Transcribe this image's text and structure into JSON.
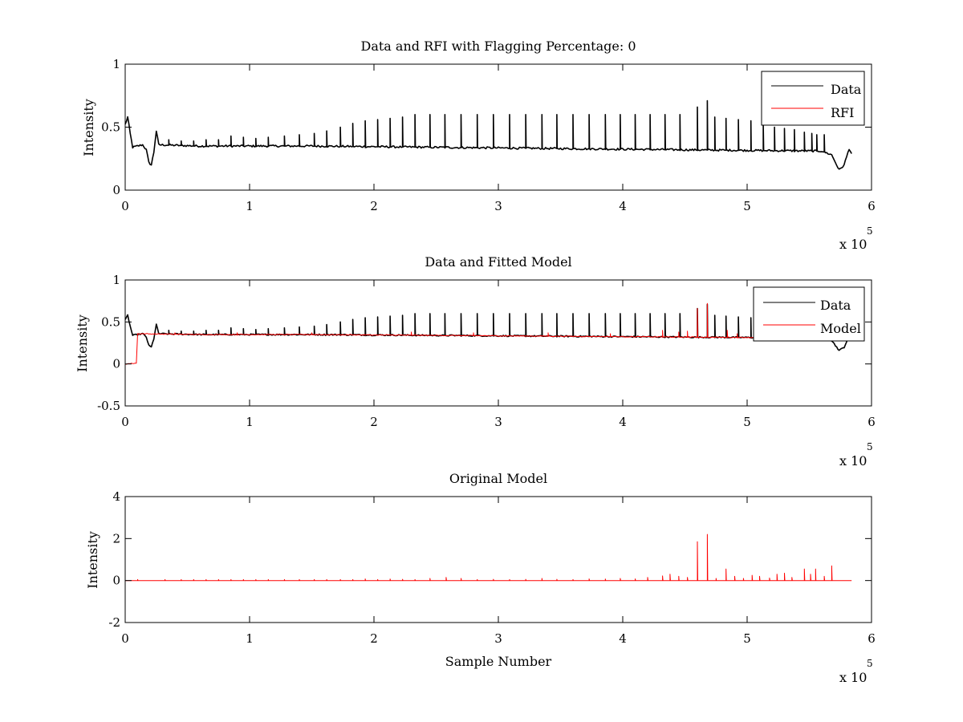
{
  "chart_data": [
    {
      "type": "line",
      "title": "Data and RFI with Flagging Percentage: 0",
      "xlabel": "",
      "ylabel": "Intensity",
      "xlim": [
        0,
        600000
      ],
      "ylim": [
        0,
        1
      ],
      "xticks": [
        "0",
        "1",
        "2",
        "3",
        "4",
        "5",
        "6"
      ],
      "yticks": [
        "0",
        "0.5",
        "1"
      ],
      "ytick_values": [
        0,
        0.5,
        1
      ],
      "x_exponent_label": "x 10",
      "x_exponent": "5",
      "grid": false,
      "legend": "top-right",
      "series": [
        {
          "name": "Data",
          "color": "#000000",
          "baseline": [
            [
              0,
              0.52
            ],
            [
              2000,
              0.58
            ],
            [
              4000,
              0.45
            ],
            [
              6000,
              0.34
            ],
            [
              10000,
              0.35
            ],
            [
              14000,
              0.36
            ],
            [
              17000,
              0.32
            ],
            [
              19000,
              0.22
            ],
            [
              21000,
              0.2
            ],
            [
              23000,
              0.3
            ],
            [
              25000,
              0.47
            ],
            [
              27000,
              0.36
            ],
            [
              60000,
              0.35
            ],
            [
              150000,
              0.35
            ],
            [
              250000,
              0.34
            ],
            [
              350000,
              0.33
            ],
            [
              450000,
              0.32
            ],
            [
              560000,
              0.31
            ],
            [
              568000,
              0.28
            ],
            [
              574000,
              0.16
            ],
            [
              578000,
              0.2
            ],
            [
              582000,
              0.33
            ],
            [
              584000,
              0.29
            ]
          ],
          "spikes": [
            [
              35000,
              0.4
            ],
            [
              45000,
              0.39
            ],
            [
              55000,
              0.39
            ],
            [
              65000,
              0.4
            ],
            [
              75000,
              0.4
            ],
            [
              85000,
              0.43
            ],
            [
              95000,
              0.42
            ],
            [
              105000,
              0.41
            ],
            [
              115000,
              0.42
            ],
            [
              128000,
              0.43
            ],
            [
              140000,
              0.44
            ],
            [
              152000,
              0.45
            ],
            [
              162000,
              0.47
            ],
            [
              173000,
              0.5
            ],
            [
              183000,
              0.53
            ],
            [
              193000,
              0.55
            ],
            [
              203000,
              0.56
            ],
            [
              213000,
              0.57
            ],
            [
              223000,
              0.58
            ],
            [
              233000,
              0.6
            ],
            [
              245000,
              0.6
            ],
            [
              257000,
              0.6
            ],
            [
              270000,
              0.6
            ],
            [
              283000,
              0.6
            ],
            [
              296000,
              0.6
            ],
            [
              309000,
              0.6
            ],
            [
              322000,
              0.6
            ],
            [
              335000,
              0.6
            ],
            [
              347000,
              0.6
            ],
            [
              360000,
              0.6
            ],
            [
              373000,
              0.6
            ],
            [
              386000,
              0.6
            ],
            [
              398000,
              0.6
            ],
            [
              410000,
              0.6
            ],
            [
              422000,
              0.6
            ],
            [
              434000,
              0.6
            ],
            [
              446000,
              0.6
            ],
            [
              460000,
              0.66
            ],
            [
              468000,
              0.71
            ],
            [
              474000,
              0.58
            ],
            [
              483000,
              0.57
            ],
            [
              493000,
              0.56
            ],
            [
              503000,
              0.55
            ],
            [
              513000,
              0.52
            ],
            [
              522000,
              0.5
            ],
            [
              530000,
              0.49
            ],
            [
              538000,
              0.48
            ],
            [
              546000,
              0.46
            ],
            [
              552000,
              0.45
            ],
            [
              556000,
              0.44
            ],
            [
              562000,
              0.44
            ]
          ]
        },
        {
          "name": "RFI",
          "color": "#ff0000",
          "values": []
        }
      ]
    },
    {
      "type": "line",
      "title": "Data and Fitted Model",
      "xlabel": "",
      "ylabel": "Intensity",
      "xlim": [
        0,
        600000
      ],
      "ylim": [
        -0.5,
        1
      ],
      "xticks": [
        "0",
        "1",
        "2",
        "3",
        "4",
        "5",
        "6"
      ],
      "yticks": [
        "-0.5",
        "0",
        "0.5",
        "1"
      ],
      "ytick_values": [
        -0.5,
        0,
        0.5,
        1
      ],
      "x_exponent_label": "x 10",
      "x_exponent": "5",
      "grid": false,
      "legend": "top-right",
      "series": [
        {
          "name": "Data",
          "color": "#000000",
          "baseline": [
            [
              0,
              0.52
            ],
            [
              2000,
              0.58
            ],
            [
              4000,
              0.45
            ],
            [
              6000,
              0.34
            ],
            [
              10000,
              0.35
            ],
            [
              14000,
              0.36
            ],
            [
              17000,
              0.32
            ],
            [
              19000,
              0.22
            ],
            [
              21000,
              0.2
            ],
            [
              23000,
              0.3
            ],
            [
              25000,
              0.47
            ],
            [
              27000,
              0.36
            ],
            [
              60000,
              0.35
            ],
            [
              150000,
              0.35
            ],
            [
              250000,
              0.34
            ],
            [
              350000,
              0.33
            ],
            [
              450000,
              0.32
            ],
            [
              560000,
              0.31
            ],
            [
              568000,
              0.28
            ],
            [
              574000,
              0.16
            ],
            [
              578000,
              0.2
            ],
            [
              582000,
              0.33
            ],
            [
              584000,
              0.29
            ]
          ],
          "spikes": [
            [
              35000,
              0.4
            ],
            [
              45000,
              0.39
            ],
            [
              55000,
              0.39
            ],
            [
              65000,
              0.4
            ],
            [
              75000,
              0.4
            ],
            [
              85000,
              0.43
            ],
            [
              95000,
              0.42
            ],
            [
              105000,
              0.41
            ],
            [
              115000,
              0.42
            ],
            [
              128000,
              0.43
            ],
            [
              140000,
              0.44
            ],
            [
              152000,
              0.45
            ],
            [
              162000,
              0.47
            ],
            [
              173000,
              0.5
            ],
            [
              183000,
              0.53
            ],
            [
              193000,
              0.55
            ],
            [
              203000,
              0.56
            ],
            [
              213000,
              0.57
            ],
            [
              223000,
              0.58
            ],
            [
              233000,
              0.6
            ],
            [
              245000,
              0.6
            ],
            [
              257000,
              0.6
            ],
            [
              270000,
              0.6
            ],
            [
              283000,
              0.6
            ],
            [
              296000,
              0.6
            ],
            [
              309000,
              0.6
            ],
            [
              322000,
              0.6
            ],
            [
              335000,
              0.6
            ],
            [
              347000,
              0.6
            ],
            [
              360000,
              0.6
            ],
            [
              373000,
              0.6
            ],
            [
              386000,
              0.6
            ],
            [
              398000,
              0.6
            ],
            [
              410000,
              0.6
            ],
            [
              422000,
              0.6
            ],
            [
              434000,
              0.6
            ],
            [
              446000,
              0.6
            ],
            [
              460000,
              0.66
            ],
            [
              468000,
              0.71
            ],
            [
              474000,
              0.58
            ],
            [
              483000,
              0.57
            ],
            [
              493000,
              0.56
            ],
            [
              503000,
              0.55
            ],
            [
              513000,
              0.52
            ],
            [
              522000,
              0.5
            ],
            [
              530000,
              0.49
            ],
            [
              538000,
              0.48
            ],
            [
              546000,
              0.46
            ],
            [
              552000,
              0.45
            ],
            [
              556000,
              0.44
            ],
            [
              562000,
              0.44
            ]
          ]
        },
        {
          "name": "Model",
          "color": "#ff0000",
          "baseline": [
            [
              0,
              0.0
            ],
            [
              9500,
              0.01
            ],
            [
              10000,
              0.36
            ],
            [
              60000,
              0.35
            ],
            [
              150000,
              0.35
            ],
            [
              250000,
              0.34
            ],
            [
              350000,
              0.33
            ],
            [
              450000,
              0.32
            ],
            [
              560000,
              0.31
            ]
          ],
          "spikes": [
            [
              40000,
              0.37
            ],
            [
              90000,
              0.37
            ],
            [
              150000,
              0.37
            ],
            [
              230000,
              0.38
            ],
            [
              280000,
              0.37
            ],
            [
              340000,
              0.37
            ],
            [
              390000,
              0.36
            ],
            [
              432000,
              0.4
            ],
            [
              445000,
              0.38
            ],
            [
              452000,
              0.39
            ],
            [
              460000,
              0.66
            ],
            [
              468000,
              0.72
            ],
            [
              484000,
              0.4
            ],
            [
              492000,
              0.36
            ],
            [
              512000,
              0.37
            ],
            [
              530000,
              0.37
            ]
          ]
        }
      ]
    },
    {
      "type": "line",
      "title": "Original Model",
      "xlabel": "Sample Number",
      "ylabel": "Intensity",
      "xlim": [
        0,
        600000
      ],
      "ylim": [
        -2,
        4
      ],
      "xticks": [
        "0",
        "1",
        "2",
        "3",
        "4",
        "5",
        "6"
      ],
      "yticks": [
        "-2",
        "0",
        "2",
        "4"
      ],
      "ytick_values": [
        -2,
        0,
        2,
        4
      ],
      "x_exponent_label": "x 10",
      "x_exponent": "5",
      "grid": false,
      "legend": "none",
      "series": [
        {
          "color": "#ff0000",
          "baseline": [
            [
              0,
              0
            ],
            [
              584000,
              0
            ]
          ],
          "spikes": [
            [
              10000,
              0.05
            ],
            [
              32000,
              0.05
            ],
            [
              45000,
              0.05
            ],
            [
              55000,
              0.05
            ],
            [
              65000,
              0.05
            ],
            [
              75000,
              0.05
            ],
            [
              85000,
              0.05
            ],
            [
              95000,
              0.05
            ],
            [
              105000,
              0.05
            ],
            [
              115000,
              0.05
            ],
            [
              128000,
              0.05
            ],
            [
              140000,
              0.05
            ],
            [
              152000,
              0.05
            ],
            [
              162000,
              0.05
            ],
            [
              173000,
              0.05
            ],
            [
              183000,
              0.05
            ],
            [
              193000,
              0.08
            ],
            [
              203000,
              0.05
            ],
            [
              213000,
              0.07
            ],
            [
              223000,
              0.06
            ],
            [
              233000,
              0.05
            ],
            [
              245000,
              0.1
            ],
            [
              258000,
              0.15
            ],
            [
              270000,
              0.1
            ],
            [
              283000,
              0.05
            ],
            [
              296000,
              0.06
            ],
            [
              309000,
              0.05
            ],
            [
              322000,
              0.06
            ],
            [
              335000,
              0.1
            ],
            [
              347000,
              0.06
            ],
            [
              360000,
              0.05
            ],
            [
              373000,
              0.08
            ],
            [
              386000,
              0.07
            ],
            [
              398000,
              0.1
            ],
            [
              410000,
              0.08
            ],
            [
              420000,
              0.15
            ],
            [
              432000,
              0.22
            ],
            [
              438000,
              0.3
            ],
            [
              445000,
              0.2
            ],
            [
              452000,
              0.15
            ],
            [
              460000,
              1.85
            ],
            [
              468000,
              2.2
            ],
            [
              475000,
              0.1
            ],
            [
              483000,
              0.55
            ],
            [
              490000,
              0.2
            ],
            [
              497000,
              0.1
            ],
            [
              504000,
              0.25
            ],
            [
              510000,
              0.2
            ],
            [
              518000,
              0.12
            ],
            [
              524000,
              0.3
            ],
            [
              530000,
              0.35
            ],
            [
              536000,
              0.15
            ],
            [
              546000,
              0.55
            ],
            [
              551000,
              0.3
            ],
            [
              555000,
              0.55
            ],
            [
              562000,
              0.2
            ],
            [
              568000,
              0.7
            ]
          ]
        }
      ]
    }
  ]
}
